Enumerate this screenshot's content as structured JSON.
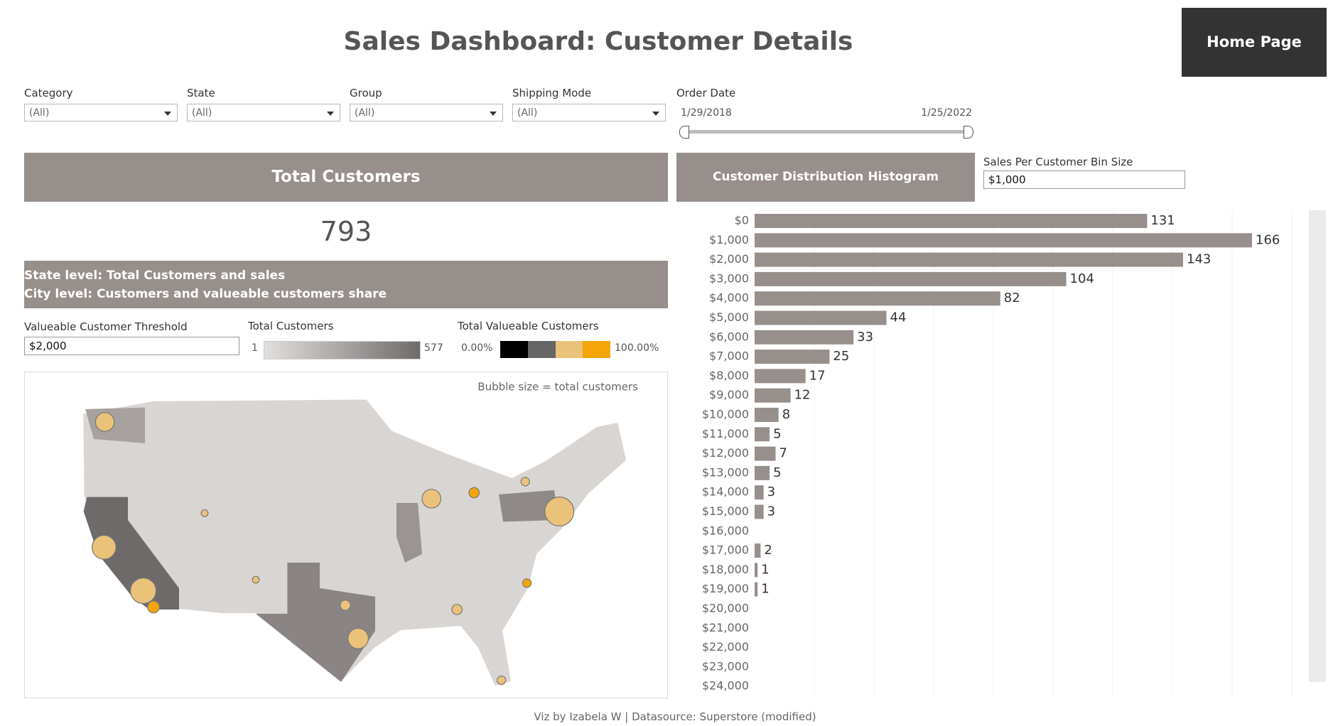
{
  "header": {
    "title": "Sales Dashboard: Customer Details",
    "home_button": "Home Page"
  },
  "filters": [
    {
      "label": "Category",
      "value": "(All)"
    },
    {
      "label": "State",
      "value": "(All)"
    },
    {
      "label": "Group",
      "value": "(All)"
    },
    {
      "label": "Shipping Mode",
      "value": "(All)"
    }
  ],
  "order_date": {
    "label": "Order Date",
    "start": "1/29/2018",
    "end": "1/25/2022"
  },
  "kpi": {
    "title": "Total Customers",
    "value": 793
  },
  "map_panel": {
    "heading_lines": [
      "State level: Total Customers and sales",
      "City level: Customers and valueable customers share"
    ],
    "threshold": {
      "label": "Valueable Customer Threshold",
      "value": "$2,000"
    },
    "legend_total": {
      "title": "Total Customers",
      "min": 1,
      "max": 577
    },
    "legend_valuable": {
      "title": "Total Valueable Customers",
      "min": "0.00%",
      "max": "100.00%"
    },
    "note": "Bubble size = total customers"
  },
  "chart_data": {
    "type": "bar",
    "orientation": "horizontal",
    "title": "Customer Distribution Histogram",
    "categories": [
      "$0",
      "$1,000",
      "$2,000",
      "$3,000",
      "$4,000",
      "$5,000",
      "$6,000",
      "$7,000",
      "$8,000",
      "$9,000",
      "$10,000",
      "$11,000",
      "$12,000",
      "$13,000",
      "$14,000",
      "$15,000",
      "$16,000",
      "$17,000",
      "$18,000",
      "$19,000",
      "$20,000",
      "$21,000",
      "$22,000",
      "$23,000",
      "$24,000"
    ],
    "values": [
      131,
      166,
      143,
      104,
      82,
      44,
      33,
      25,
      17,
      12,
      8,
      5,
      7,
      5,
      3,
      3,
      null,
      2,
      1,
      1,
      null,
      null,
      null,
      null,
      null
    ],
    "color": "#978f8b"
  },
  "bin_size": {
    "label": "Sales Per Customer Bin Size",
    "value": "$1,000"
  },
  "footer": "Viz by Izabela W | Datasource: Superstore (modified)"
}
